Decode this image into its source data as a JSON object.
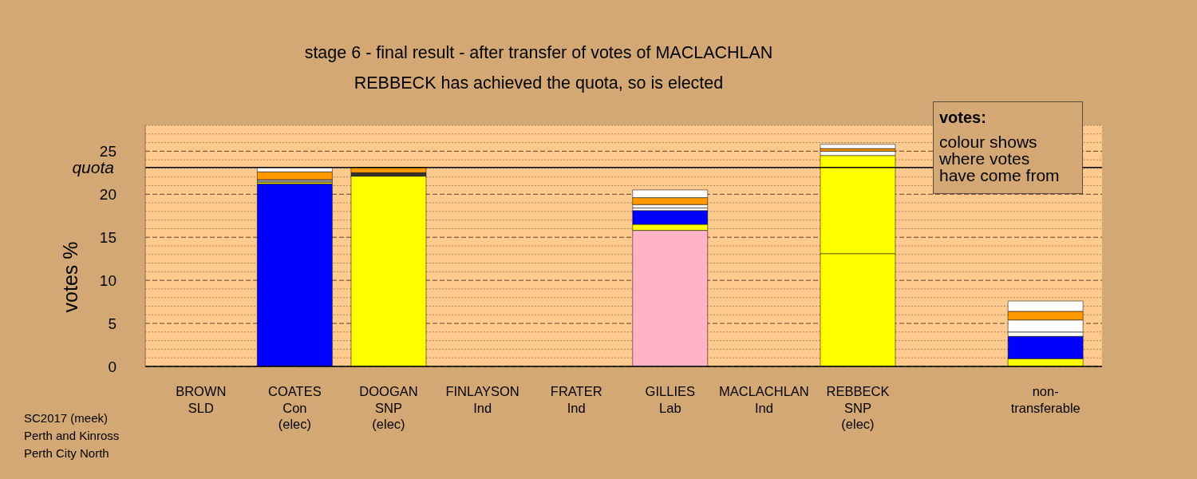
{
  "chart_data": {
    "type": "bar",
    "stacked": true,
    "title": "stage 6 - final result - after transfer of votes of MACLACHLAN",
    "subtitle": "REBBECK has achieved the quota, so is elected",
    "ylabel": "votes %",
    "categories": [
      "BROWN\nSLD",
      "COATES\nCon\n(elec)",
      "DOOGAN\nSNP\n(elec)",
      "FINLAYSON\nInd",
      "FRATER\nInd",
      "GILLIES\nLab",
      "MACLACHLAN\nInd",
      "REBBECK\nSNP\n(elec)",
      null,
      "non-\ntransferable"
    ],
    "series": [
      {
        "colors": [
          "#ff9900",
          "#0000ff",
          "#ffff00",
          "#ffffff",
          "#ffffff",
          "#ffb3c6",
          "#ffffff",
          "#ffff00",
          null,
          "#ffffff"
        ],
        "values": [
          0,
          21.2,
          22.1,
          0,
          0,
          15.8,
          0,
          13.1,
          null,
          0
        ]
      },
      {
        "color": "#ffff00",
        "values": [
          0,
          0.2,
          0,
          0,
          0,
          0.7,
          0,
          11.4,
          null,
          0.9
        ]
      },
      {
        "color": "#0000ff",
        "values": [
          0,
          0,
          0,
          0,
          0,
          1.6,
          0,
          0,
          null,
          2.6
        ]
      },
      {
        "color": "#333333",
        "values": [
          0,
          0,
          0.4,
          0,
          0,
          0,
          0,
          0,
          null,
          0
        ]
      },
      {
        "color": "#ffffff",
        "values": [
          0,
          0,
          0,
          0,
          0,
          0.3,
          0,
          0.5,
          null,
          0.5
        ]
      },
      {
        "color": "#999999",
        "values": [
          0,
          0.3,
          0,
          0,
          0,
          0,
          0,
          0,
          null,
          0
        ]
      },
      {
        "color": "#ffffff",
        "values": [
          0,
          0,
          0,
          0,
          0,
          0.4,
          0,
          0,
          null,
          1.4
        ]
      },
      {
        "color": "#ff9900",
        "values": [
          0,
          0.9,
          0.6,
          0,
          0,
          0.8,
          0,
          0.3,
          null,
          1.0
        ]
      },
      {
        "color": "#ffffff",
        "values": [
          0,
          0.5,
          0,
          0,
          0,
          0.9,
          0,
          0.5,
          null,
          1.2
        ]
      }
    ],
    "ylim": [
      0,
      28
    ],
    "yticks": [
      0,
      {
        "value": 1,
        "label": null
      },
      {
        "value": 2,
        "label": null
      },
      {
        "value": 3,
        "label": null
      },
      {
        "value": 4,
        "label": null
      },
      5,
      {
        "value": 6,
        "label": null
      },
      {
        "value": 7,
        "label": null
      },
      {
        "value": 8,
        "label": null
      },
      {
        "value": 9,
        "label": null
      },
      10,
      {
        "value": 11,
        "label": null
      },
      {
        "value": 12,
        "label": null
      },
      {
        "value": 13,
        "label": null
      },
      {
        "value": 14,
        "label": null
      },
      15,
      {
        "value": 16,
        "label": null
      },
      {
        "value": 17,
        "label": null
      },
      {
        "value": 18,
        "label": null
      },
      {
        "value": 19,
        "label": null
      },
      20,
      {
        "value": 21,
        "label": null
      },
      {
        "value": 22,
        "label": null
      },
      {
        "value": 23,
        "label": null
      },
      {
        "value": 24,
        "label": null
      },
      25,
      {
        "value": 26,
        "label": null
      },
      {
        "value": 27,
        "label": null
      },
      {
        "value": 28,
        "label": null
      }
    ],
    "grid": "y",
    "ref_lines": [
      {
        "axis": "y",
        "value": 23.1,
        "label": "quota",
        "color": "#000000"
      }
    ],
    "annotations": [
      "votes:",
      "colour shows where votes have come from",
      "SC2017 (meek)",
      "Perth and Kinross",
      "Perth City North"
    ]
  }
}
